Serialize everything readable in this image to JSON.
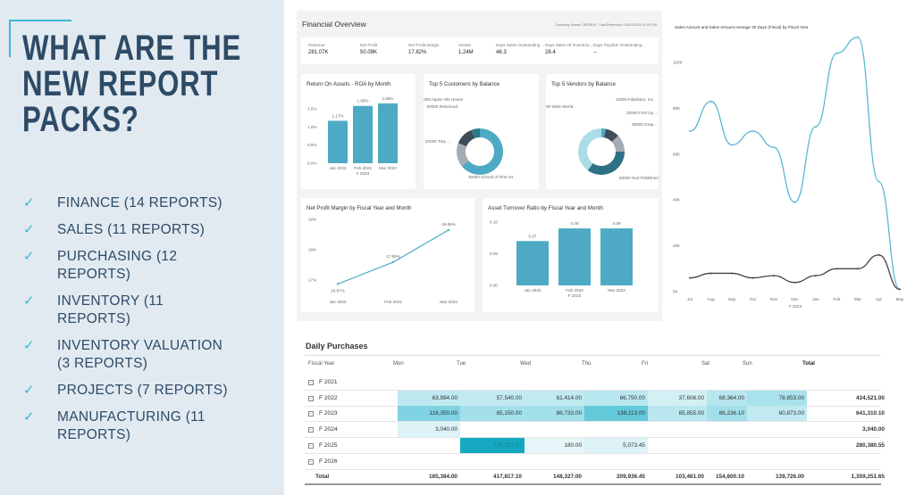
{
  "slide": {
    "title_lines": [
      "WHAT ARE THE",
      "NEW REPORT",
      "PACKS?"
    ],
    "bullets": [
      {
        "icon": "check-icon",
        "lines": [
          "FINANCE (14 REPORTS)"
        ]
      },
      {
        "icon": "check-icon",
        "lines": [
          "SALES (11 REPORTS)"
        ]
      },
      {
        "icon": "check-icon",
        "lines": [
          "PURCHASING (12",
          "REPORTS)"
        ]
      },
      {
        "icon": "check-icon",
        "lines": [
          "INVENTORY (11",
          "REPORTS)"
        ]
      },
      {
        "icon": "check-icon",
        "lines": [
          "INVENTORY VALUATION",
          "(3 REPORTS)"
        ]
      },
      {
        "icon": "check-icon",
        "lines": [
          "PROJECTS (7 REPORTS)"
        ]
      },
      {
        "icon": "check-icon",
        "lines": [
          "MANUFACTURING (11",
          "REPORTS)"
        ]
      }
    ],
    "check_glyph": "✓",
    "accent": "#3bb7d2",
    "text_color": "#2d4b66"
  },
  "financial_overview": {
    "title": "Financial Overview",
    "meta": "Company Name: CRONUS · Last Refreshed: 10/31/2024 01:31 PM",
    "kpis": [
      {
        "label": "Revenue",
        "value": "281.07K"
      },
      {
        "label": "Net Profit",
        "value": "50.09K"
      },
      {
        "label": "Net Profit Margin",
        "value": "17.82%"
      },
      {
        "label": "Assets",
        "value": "1.24M"
      },
      {
        "label": "Days Sales Outstanding ...",
        "value": "46.3"
      },
      {
        "label": "Days Sales Of Inventory ...",
        "value": "28.4"
      },
      {
        "label": "Days Payable Outstanding...",
        "value": "--"
      }
    ]
  },
  "chart_data": [
    {
      "id": "roa",
      "type": "bar",
      "title": "Return On Assets - ROA by Month",
      "categories": [
        "Jan 2023",
        "Feb 2023",
        "Mar 2023"
      ],
      "values": [
        1.17,
        1.58,
        1.65
      ],
      "data_labels": [
        "1.17%",
        "1.58%",
        "1.65%"
      ],
      "xlabel": "F 2023",
      "yticks": [
        "0.0%",
        "0.5%",
        "1.0%",
        "1.5%"
      ],
      "ylim": [
        0,
        1.5
      ],
      "color": "#4eaac4"
    },
    {
      "id": "customers",
      "type": "pie",
      "title": "Top 5 Customers by Balance",
      "labels": [
        "30000 School of Fine Art",
        "20000 Trey ...",
        "50000 Relecloud",
        "40000 Alpine Ski House"
      ],
      "values": [
        64,
        17,
        13,
        6
      ],
      "colors": [
        "#4eaac4",
        "#a4abb2",
        "#404b58",
        "#2a7a8c"
      ]
    },
    {
      "id": "vendors",
      "type": "pie",
      "title": "Top 5 Vendors by Balance",
      "labels": [
        "10000 Fabrikam, Inc.",
        "20000 First Up ...",
        "30000 Grap...",
        "50000 Nod Publishers",
        "40000 Wide World..."
      ],
      "values": [
        3,
        10,
        12,
        35,
        40
      ],
      "colors": [
        "#4eaac4",
        "#404b58",
        "#a4abb2",
        "#2d7184",
        "#a9dde8"
      ]
    },
    {
      "id": "npm",
      "type": "line",
      "title": "Net Profit Margin by Fiscal Year and Month",
      "categories": [
        "Jan 2023",
        "Feb 2023",
        "Mar 2023"
      ],
      "values": [
        16.87,
        17.59,
        18.65
      ],
      "data_labels": [
        "16.87%",
        "17.59%",
        "18.65%"
      ],
      "yticks": [
        "17%",
        "18%",
        "19%"
      ],
      "ylim": [
        17,
        19
      ],
      "color": "#4eaac4"
    },
    {
      "id": "turnover",
      "type": "bar",
      "title": "Asset Turnover Ratio by Fiscal Year and Month",
      "categories": [
        "Jan 2023",
        "Feb 2023",
        "Mar 2023"
      ],
      "values": [
        0.07,
        0.09,
        0.09
      ],
      "data_labels": [
        "0.07",
        "0.09",
        "0.09"
      ],
      "xlabel": "F 2023",
      "yticks": [
        "0.00",
        "0.05",
        "0.10"
      ],
      "ylim": [
        0,
        0.1
      ],
      "color": "#4eaac4"
    },
    {
      "id": "sales",
      "type": "line",
      "title": "Sales Amount and Sales Amount Average 30 Days (Fiscal) by Fiscal Year",
      "categories": [
        "Jul",
        "Aug",
        "Sep",
        "Oct",
        "Nov",
        "Dec",
        "Jan",
        "Feb",
        "Mar",
        "Apr",
        "May"
      ],
      "xlabel": "F 2023",
      "yticks": [
        "0K",
        "20K",
        "40K",
        "60K",
        "80K",
        "100K"
      ],
      "ylim": [
        0,
        100
      ],
      "series": [
        {
          "values": [
            70,
            83,
            64,
            70,
            63,
            39,
            72,
            104,
            111,
            48,
            1
          ],
          "color": "#5ab8d4"
        },
        {
          "values": [
            6,
            8,
            8,
            6,
            7,
            4,
            7,
            10,
            10,
            16,
            1
          ],
          "color": "#444"
        }
      ]
    }
  ],
  "daily_purchases": {
    "title": "Daily Purchases",
    "columns": [
      "Fiscal Year",
      "Mon",
      "Tue",
      "Wed",
      "Thu",
      "Fri",
      "Sat",
      "Sun",
      "Total"
    ],
    "rows": [
      {
        "year": "F 2021",
        "cells": [
          "",
          "",
          "",
          "",
          "",
          "",
          "",
          ""
        ]
      },
      {
        "year": "F 2022",
        "cells": [
          "63,994.00",
          "57,540.00",
          "61,414.00",
          "66,750.00",
          "37,606.00",
          "68,364.00",
          "78,853.00",
          "434,521.00"
        ]
      },
      {
        "year": "F 2023",
        "cells": [
          "118,350.00",
          "85,150.00",
          "86,733.00",
          "138,113.00",
          "65,855.00",
          "86,236.10",
          "60,873.00",
          "641,310.10"
        ]
      },
      {
        "year": "F 2024",
        "cells": [
          "3,040.00",
          "",
          "",
          "",
          "",
          "",
          "",
          "3,040.00"
        ]
      },
      {
        "year": "F 2025",
        "cells": [
          "",
          "275,127.10",
          "180.00",
          "5,073.45",
          "",
          "",
          "",
          "280,380.55"
        ]
      },
      {
        "year": "F 2026",
        "cells": [
          "",
          "",
          "",
          "",
          "",
          "",
          "",
          ""
        ]
      }
    ],
    "total": {
      "label": "Total",
      "cells": [
        "185,384.00",
        "417,817.10",
        "148,327.00",
        "209,936.45",
        "103,461.00",
        "154,600.10",
        "139,726.00",
        "1,359,251.65"
      ]
    }
  }
}
